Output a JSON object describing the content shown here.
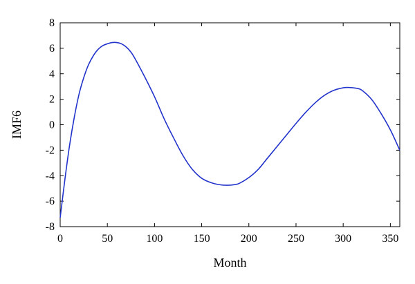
{
  "chart_data": {
    "type": "line",
    "title": "",
    "xlabel": "Month",
    "ylabel": "IMF6",
    "xlim": [
      0,
      360
    ],
    "ylim": [
      -8,
      8
    ],
    "xticks": [
      0,
      50,
      100,
      150,
      200,
      250,
      300,
      350
    ],
    "yticks": [
      -8,
      -6,
      -4,
      -2,
      0,
      2,
      4,
      6,
      8
    ],
    "grid": false,
    "line_color": "#2233cc",
    "series": [
      {
        "x": [
          0,
          5,
          10,
          15,
          20,
          25,
          30,
          35,
          40,
          45,
          50,
          55,
          60,
          65,
          70,
          75,
          80,
          90,
          100,
          110,
          120,
          130,
          140,
          150,
          160,
          170,
          178,
          185,
          190,
          200,
          210,
          220,
          230,
          240,
          250,
          260,
          270,
          280,
          290,
          300,
          307,
          315,
          320,
          330,
          340,
          350,
          360
        ],
        "y": [
          -7.3,
          -4.3,
          -1.6,
          0.6,
          2.4,
          3.7,
          4.7,
          5.4,
          5.9,
          6.2,
          6.35,
          6.45,
          6.45,
          6.35,
          6.1,
          5.7,
          5.1,
          3.7,
          2.2,
          0.5,
          -1.0,
          -2.4,
          -3.5,
          -4.2,
          -4.55,
          -4.72,
          -4.75,
          -4.7,
          -4.6,
          -4.15,
          -3.5,
          -2.6,
          -1.7,
          -0.8,
          0.1,
          0.95,
          1.7,
          2.3,
          2.7,
          2.9,
          2.92,
          2.85,
          2.7,
          2.0,
          0.9,
          -0.4,
          -2.0
        ]
      }
    ]
  }
}
